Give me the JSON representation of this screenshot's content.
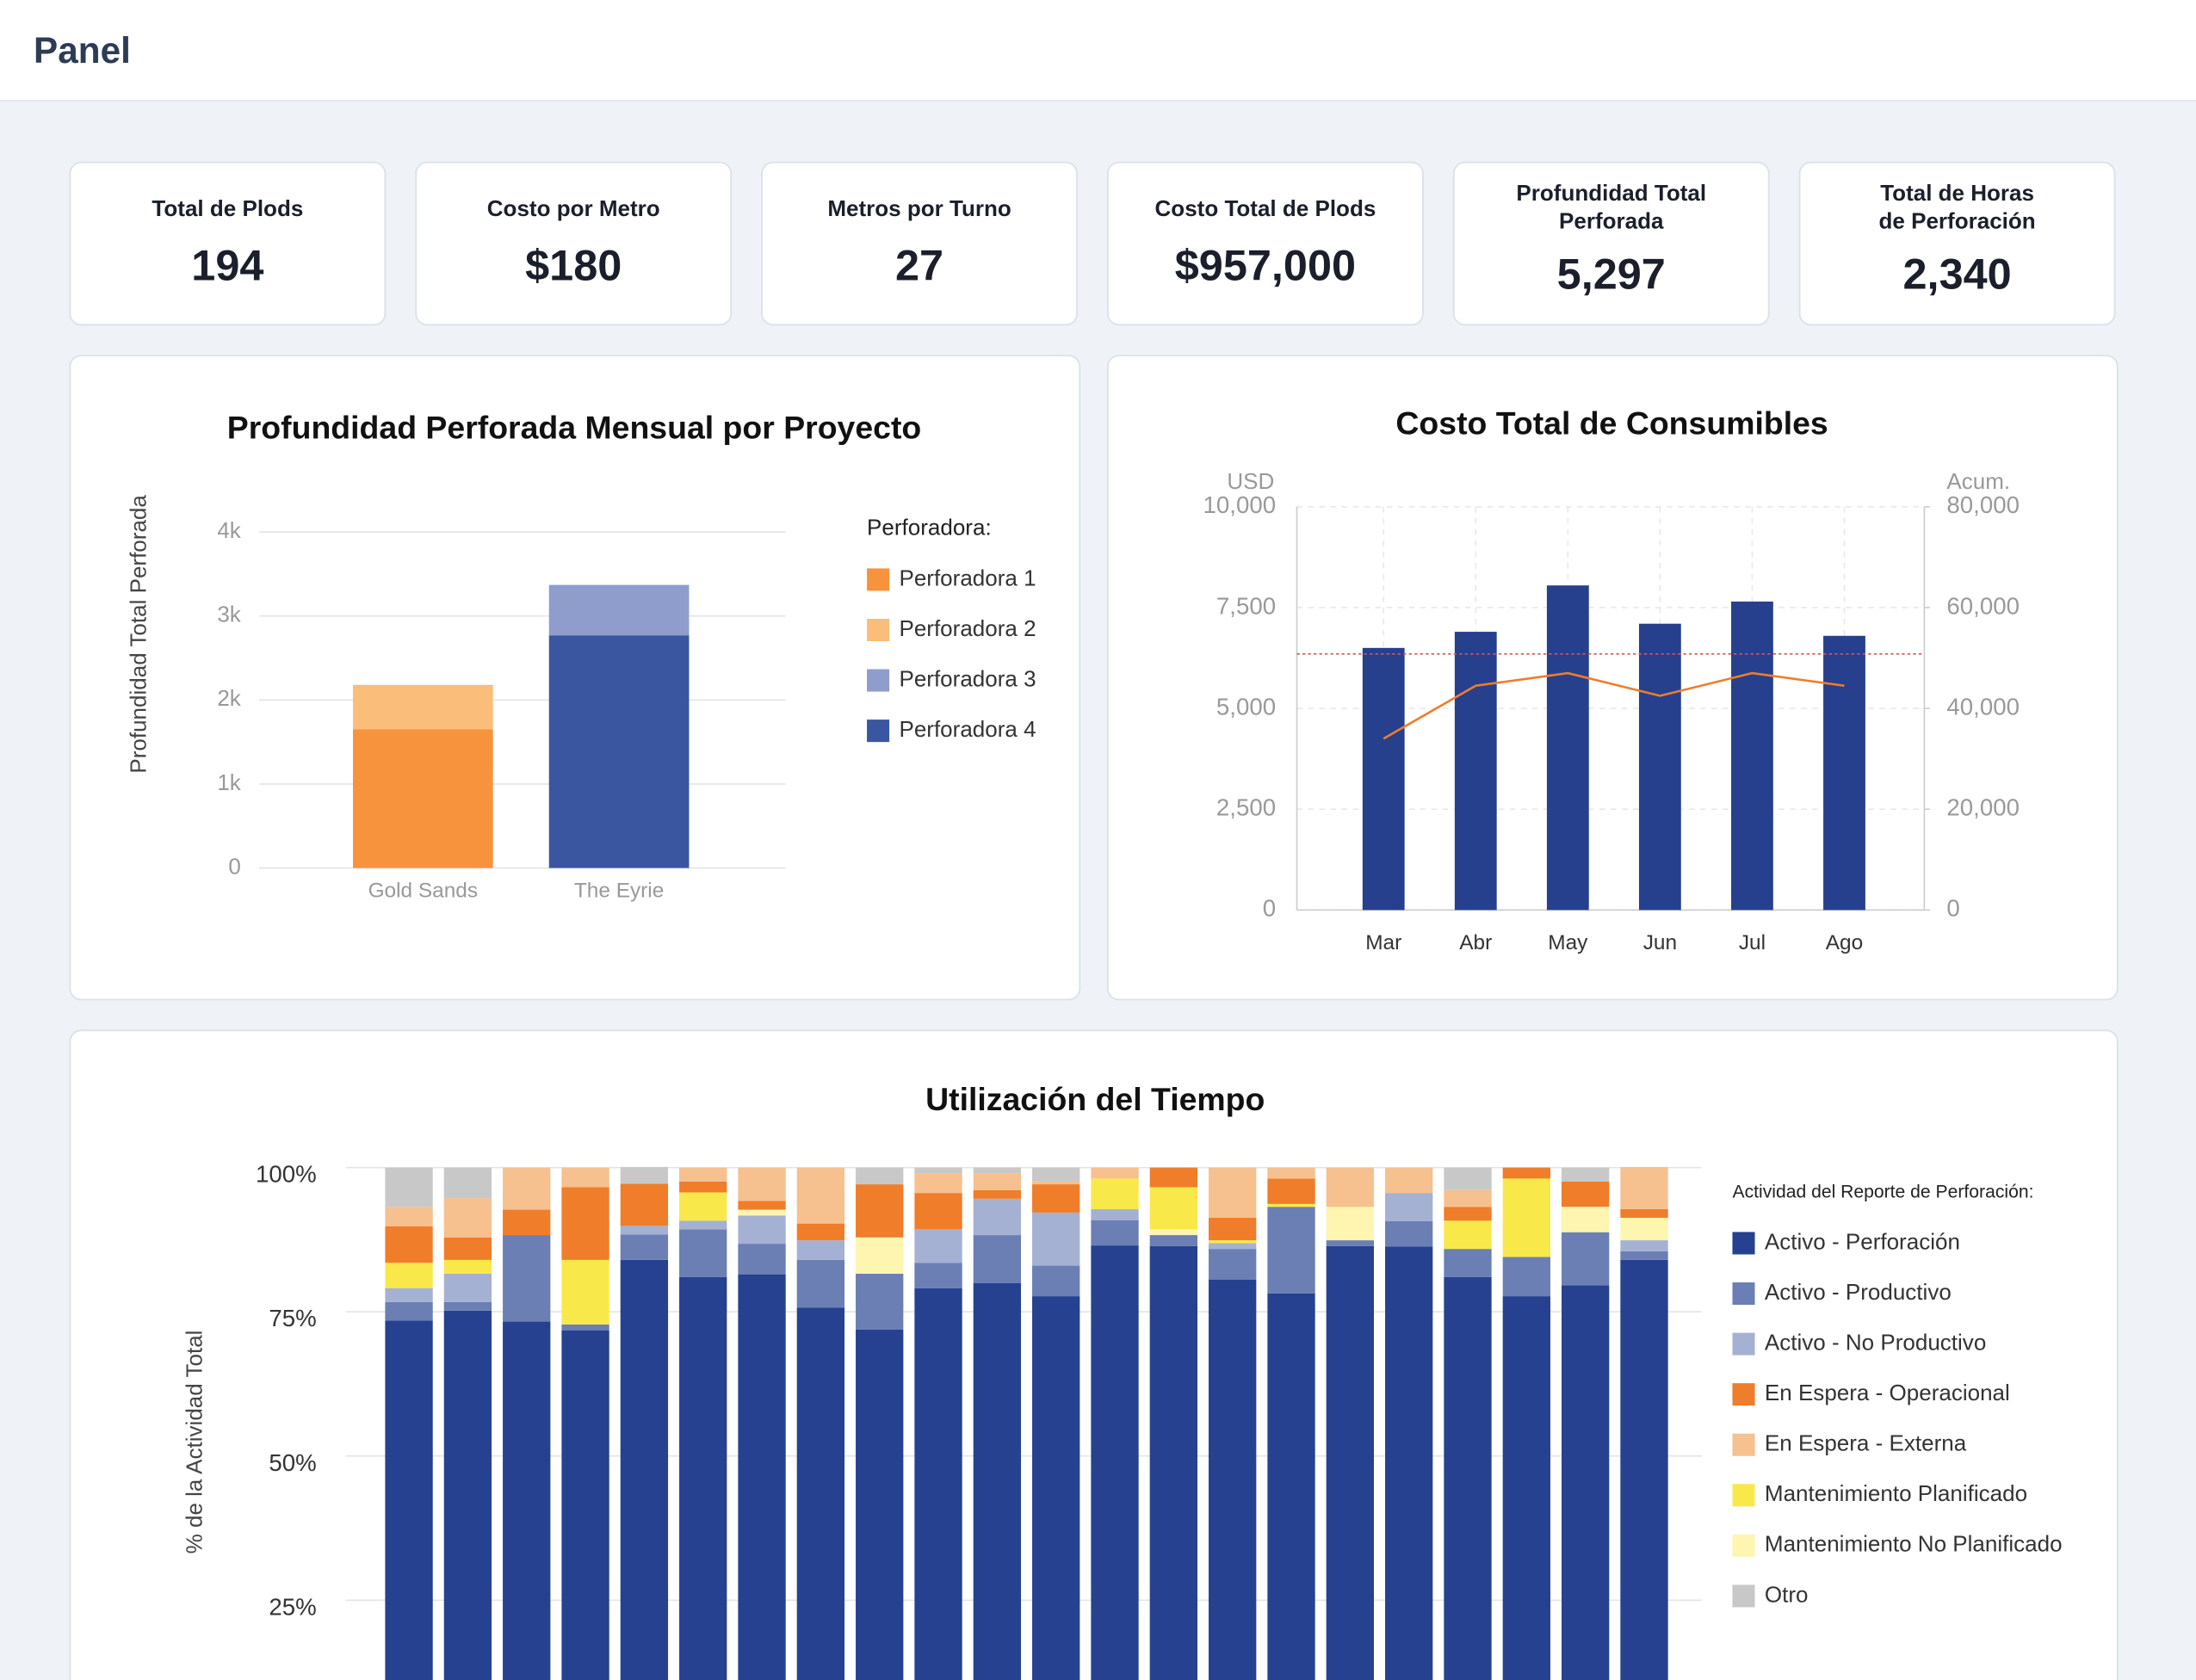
{
  "header": {
    "title": "Panel"
  },
  "kpis": [
    {
      "title": [
        "Total de Plods"
      ],
      "value": "194"
    },
    {
      "title": [
        "Costo por Metro"
      ],
      "value": "$180"
    },
    {
      "title": [
        "Metros por Turno"
      ],
      "value": "27"
    },
    {
      "title": [
        "Costo Total de Plods"
      ],
      "value": "$957,000"
    },
    {
      "title": [
        "Profundidad Total",
        "Perforada"
      ],
      "value": "5,297"
    },
    {
      "title": [
        "Total de Horas",
        "de Perforación"
      ],
      "value": "2,340"
    }
  ],
  "chart_data": [
    {
      "type": "bar",
      "stacked": true,
      "title": "Profundidad Perforada Mensual por Proyecto",
      "y_label": "Profundidad Total Perforada",
      "legend_title": "Perforadora:",
      "legend": "right",
      "grid": true,
      "categories": [
        "Gold Sands",
        "The Eyrie"
      ],
      "series": [
        {
          "name": "Perforadora 1",
          "color": "#f7923d",
          "values": [
            1650,
            null
          ]
        },
        {
          "name": "Perforadora 2",
          "color": "#fbbd7a",
          "values": [
            530,
            null
          ]
        },
        {
          "name": "Perforadora 3",
          "color": "#8e9dcc",
          "values": [
            null,
            600
          ]
        },
        {
          "name": "Perforadora 4",
          "color": "#3a56a0",
          "values": [
            null,
            2770
          ]
        }
      ],
      "ylim": [
        0,
        4000
      ],
      "yticks": [
        0,
        {
          "value": 1000,
          "label": "1k"
        },
        {
          "value": 2000,
          "label": "2k"
        },
        {
          "value": 3000,
          "label": "3k"
        },
        {
          "value": 4000,
          "label": "4k"
        }
      ]
    },
    {
      "type": "combo",
      "title": "Costo Total de Consumibles",
      "y_label": "USD",
      "y2_label": "Acum.",
      "grid": true,
      "categories": [
        "Mar",
        "Abr",
        "May",
        "Jun",
        "Jul",
        "Ago"
      ],
      "series": [
        {
          "type": "bar",
          "color": "#26408d",
          "values": [
            6500,
            6900,
            8050,
            7100,
            7650,
            6800
          ]
        },
        {
          "type": "line",
          "axis": "y2",
          "color": "#ef7d2a",
          "values": [
            34000,
            44500,
            47000,
            42500,
            47000,
            44500
          ]
        }
      ],
      "ylim": [
        0,
        10000
      ],
      "yticks": [
        0,
        {
          "value": 2500,
          "label": "2,500"
        },
        {
          "value": 5000,
          "label": "5,000"
        },
        {
          "value": 7500,
          "label": "7,500"
        },
        {
          "value": 10000,
          "label": "10,000"
        }
      ],
      "y2lim": [
        0,
        80000
      ],
      "y2ticks": [
        0,
        {
          "value": 20000,
          "label": "20,000"
        },
        {
          "value": 40000,
          "label": "40,000"
        },
        {
          "value": 60000,
          "label": "60,000"
        },
        {
          "value": 80000,
          "label": "80,000"
        }
      ],
      "reference_line": {
        "value": 6350,
        "color": "#e05252"
      }
    },
    {
      "type": "bar",
      "stacked": true,
      "title": "Utilización del Tiempo",
      "y_label": "% de la Actividad Total",
      "legend_title": "Actividad del Reporte de Perforación:",
      "legend": "right",
      "grid": true,
      "categories": [
        null,
        null,
        null,
        null,
        null,
        null,
        null,
        null,
        null,
        null,
        null,
        null,
        null,
        null,
        null,
        null,
        null,
        null,
        null,
        null,
        null,
        null
      ],
      "series": [
        {
          "name": "Activo - Perforación",
          "color": "#26418f",
          "values": [
            73.5,
            75.2,
            73.3,
            71.8,
            84,
            81,
            81.5,
            75.7,
            71.9,
            79.1,
            80,
            77.7,
            86.5,
            86.4,
            80.6,
            78.2,
            86.4,
            86.3,
            81,
            77.7,
            79.6,
            84
          ]
        },
        {
          "name": "Activo - Productivo",
          "color": "#6b7fb5",
          "values": [
            3.2,
            1.5,
            15,
            1,
            4.4,
            8.3,
            5.3,
            8.3,
            9.7,
            4.4,
            8.3,
            5.3,
            4.4,
            1.9,
            5.3,
            15,
            1,
            4.4,
            4.9,
            6.8,
            9.2,
            1.5
          ]
        },
        {
          "name": "Activo - No Productivo",
          "color": "#a4b1d3",
          "values": [
            2.4,
            4.9,
            0,
            0,
            1.5,
            1.5,
            4.9,
            3.4,
            0,
            5.8,
            6.3,
            9.2,
            1.9,
            0,
            1,
            0,
            0,
            4.9,
            0,
            0,
            0,
            1.9
          ]
        },
        {
          "name": "En Espera - Operacional",
          "color": "#ef7d2a",
          "values": [
            6.3,
            3.9,
            4.4,
            12.6,
            7.3,
            1.9,
            1.5,
            2.9,
            9.2,
            6.3,
            1.5,
            4.9,
            0,
            3.4,
            3.9,
            4.4,
            0,
            0,
            2.4,
            1.9,
            4.4,
            1.5
          ]
        },
        {
          "name": "En Espera - Externa",
          "color": "#f6c08f",
          "values": [
            3.4,
            6.8,
            7.3,
            3.4,
            0,
            2.4,
            5.8,
            9.7,
            0,
            3.4,
            2.9,
            0.5,
            1.9,
            0,
            8.7,
            1.9,
            6.8,
            4.4,
            2.9,
            0,
            0,
            7.3
          ]
        },
        {
          "name": "Mantenimiento Planificado",
          "color": "#f9e84a",
          "values": [
            4.4,
            2.4,
            0,
            11.2,
            0,
            4.9,
            0,
            0,
            0,
            0,
            0,
            0,
            5.3,
            7.3,
            0.5,
            0.5,
            0,
            0,
            4.9,
            13.6,
            0,
            0
          ]
        },
        {
          "name": "Mantenimiento No Planificado",
          "color": "#fdf5b0",
          "values": [
            0,
            0,
            0,
            0,
            0,
            0,
            1,
            0,
            6.3,
            0,
            0,
            0,
            0,
            1,
            0,
            0,
            5.8,
            0,
            0,
            0,
            4.4,
            3.9
          ]
        },
        {
          "name": "Otro",
          "color": "#c8c8c8",
          "values": [
            6.8,
            5.3,
            0,
            0,
            2.9,
            0,
            0,
            0,
            2.9,
            1,
            1,
            2.4,
            0,
            0,
            0,
            0,
            0,
            0,
            3.9,
            0,
            2.4,
            0
          ]
        }
      ],
      "ylim": [
        0,
        100
      ],
      "yticks": [
        {
          "value": 25,
          "label": "25%"
        },
        {
          "value": 50,
          "label": "50%"
        },
        {
          "value": 75,
          "label": "75%"
        },
        {
          "value": 100,
          "label": "100%"
        }
      ]
    }
  ]
}
